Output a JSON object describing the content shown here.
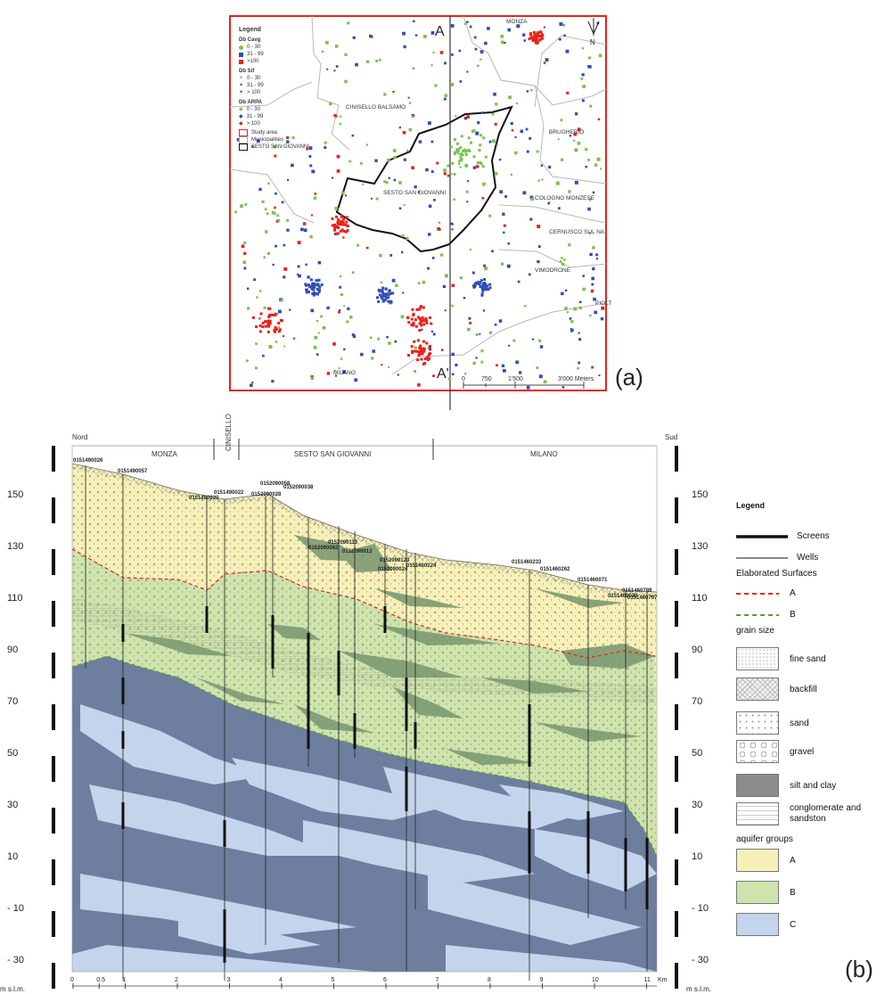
{
  "map": {
    "legend_title": "Legend",
    "groups": [
      {
        "title": "Db Cavg",
        "items": [
          "0 - 30",
          "31 - 99",
          ">100"
        ]
      },
      {
        "title": "Db Sif",
        "items": [
          "0 - 30",
          "31 - 99",
          "> 100"
        ]
      },
      {
        "title": "Db ARPA",
        "items": [
          "0 - 30",
          "31 - 99",
          "> 100"
        ]
      }
    ],
    "study_area": "Study area",
    "municipalities": "Municipalities",
    "sesto": "SESTO SAN GIOVANNI",
    "places": {
      "monza": "MONZA",
      "cinisello": "CINISELLO BALSAMO",
      "brugherio": "BRUGHERIO",
      "sesto": "SESTO SAN GIOVANNI",
      "cologno": "COLOGNO MONZESE",
      "cernusco": "CERNUSCO SUL NA",
      "vimodrone": "VIMODRONE",
      "pioltello": "PIOLT",
      "milano": "MILANO"
    },
    "section_top": "A",
    "section_bottom": "A'",
    "north": "N",
    "scale": [
      "0",
      "750",
      "1'500",
      "3'000 Meters"
    ],
    "panel_label": "(a)"
  },
  "section": {
    "north_label": "Nord",
    "south_label": "Sud",
    "regions": [
      "MONZA",
      "CINISELLO",
      "SESTO SAN GIOVANNI",
      "MILANO"
    ],
    "y_ticks": [
      "150",
      "130",
      "110",
      "90",
      "70",
      "50",
      "30",
      "10",
      "- 10",
      "- 30"
    ],
    "y_unit": "m s.l.m.",
    "x_ticks": [
      "0",
      "0.5",
      "1",
      "2",
      "3",
      "4",
      "5",
      "6",
      "7",
      "8",
      "9",
      "10",
      "11"
    ],
    "x_unit": "Km",
    "wells": [
      "0151490026",
      "0151490057",
      "0151490020",
      "0151490022",
      "0152090058",
      "0152090028",
      "0152090038",
      "0152090062",
      "0152090113",
      "0152090013",
      "0152090123",
      "0152090024",
      "0151460224",
      "0151460233",
      "0151460262",
      "0151460071",
      "0151460070",
      "0151460789",
      "0151460797"
    ],
    "panel_label": "(b)"
  },
  "legend": {
    "title": "Legend",
    "screens": "Screens",
    "wells": "Wells",
    "surfaces_title": "Elaborated Surfaces",
    "surface_a": "A",
    "surface_b": "B",
    "grain_title": "grain size",
    "fine_sand": "fine sand",
    "backfill": "backfill",
    "sand": "sand",
    "gravel": "gravel",
    "silt_clay": "silt and clay",
    "conglomerate": "conglomerate and sandston",
    "aquifer_title": "aquifer groups",
    "aq_a": "A",
    "aq_b": "B",
    "aq_c": "C"
  },
  "colors": {
    "red": "#e8231b",
    "blue": "#2e4fb8",
    "green": "#7cc24a",
    "aquifer_a": "#f6f0b8",
    "aquifer_b": "#cfe3ad",
    "aquifer_c": "#c4d4ec",
    "dark_slate": "#6d7e9e",
    "clay": "#7e9a72"
  }
}
